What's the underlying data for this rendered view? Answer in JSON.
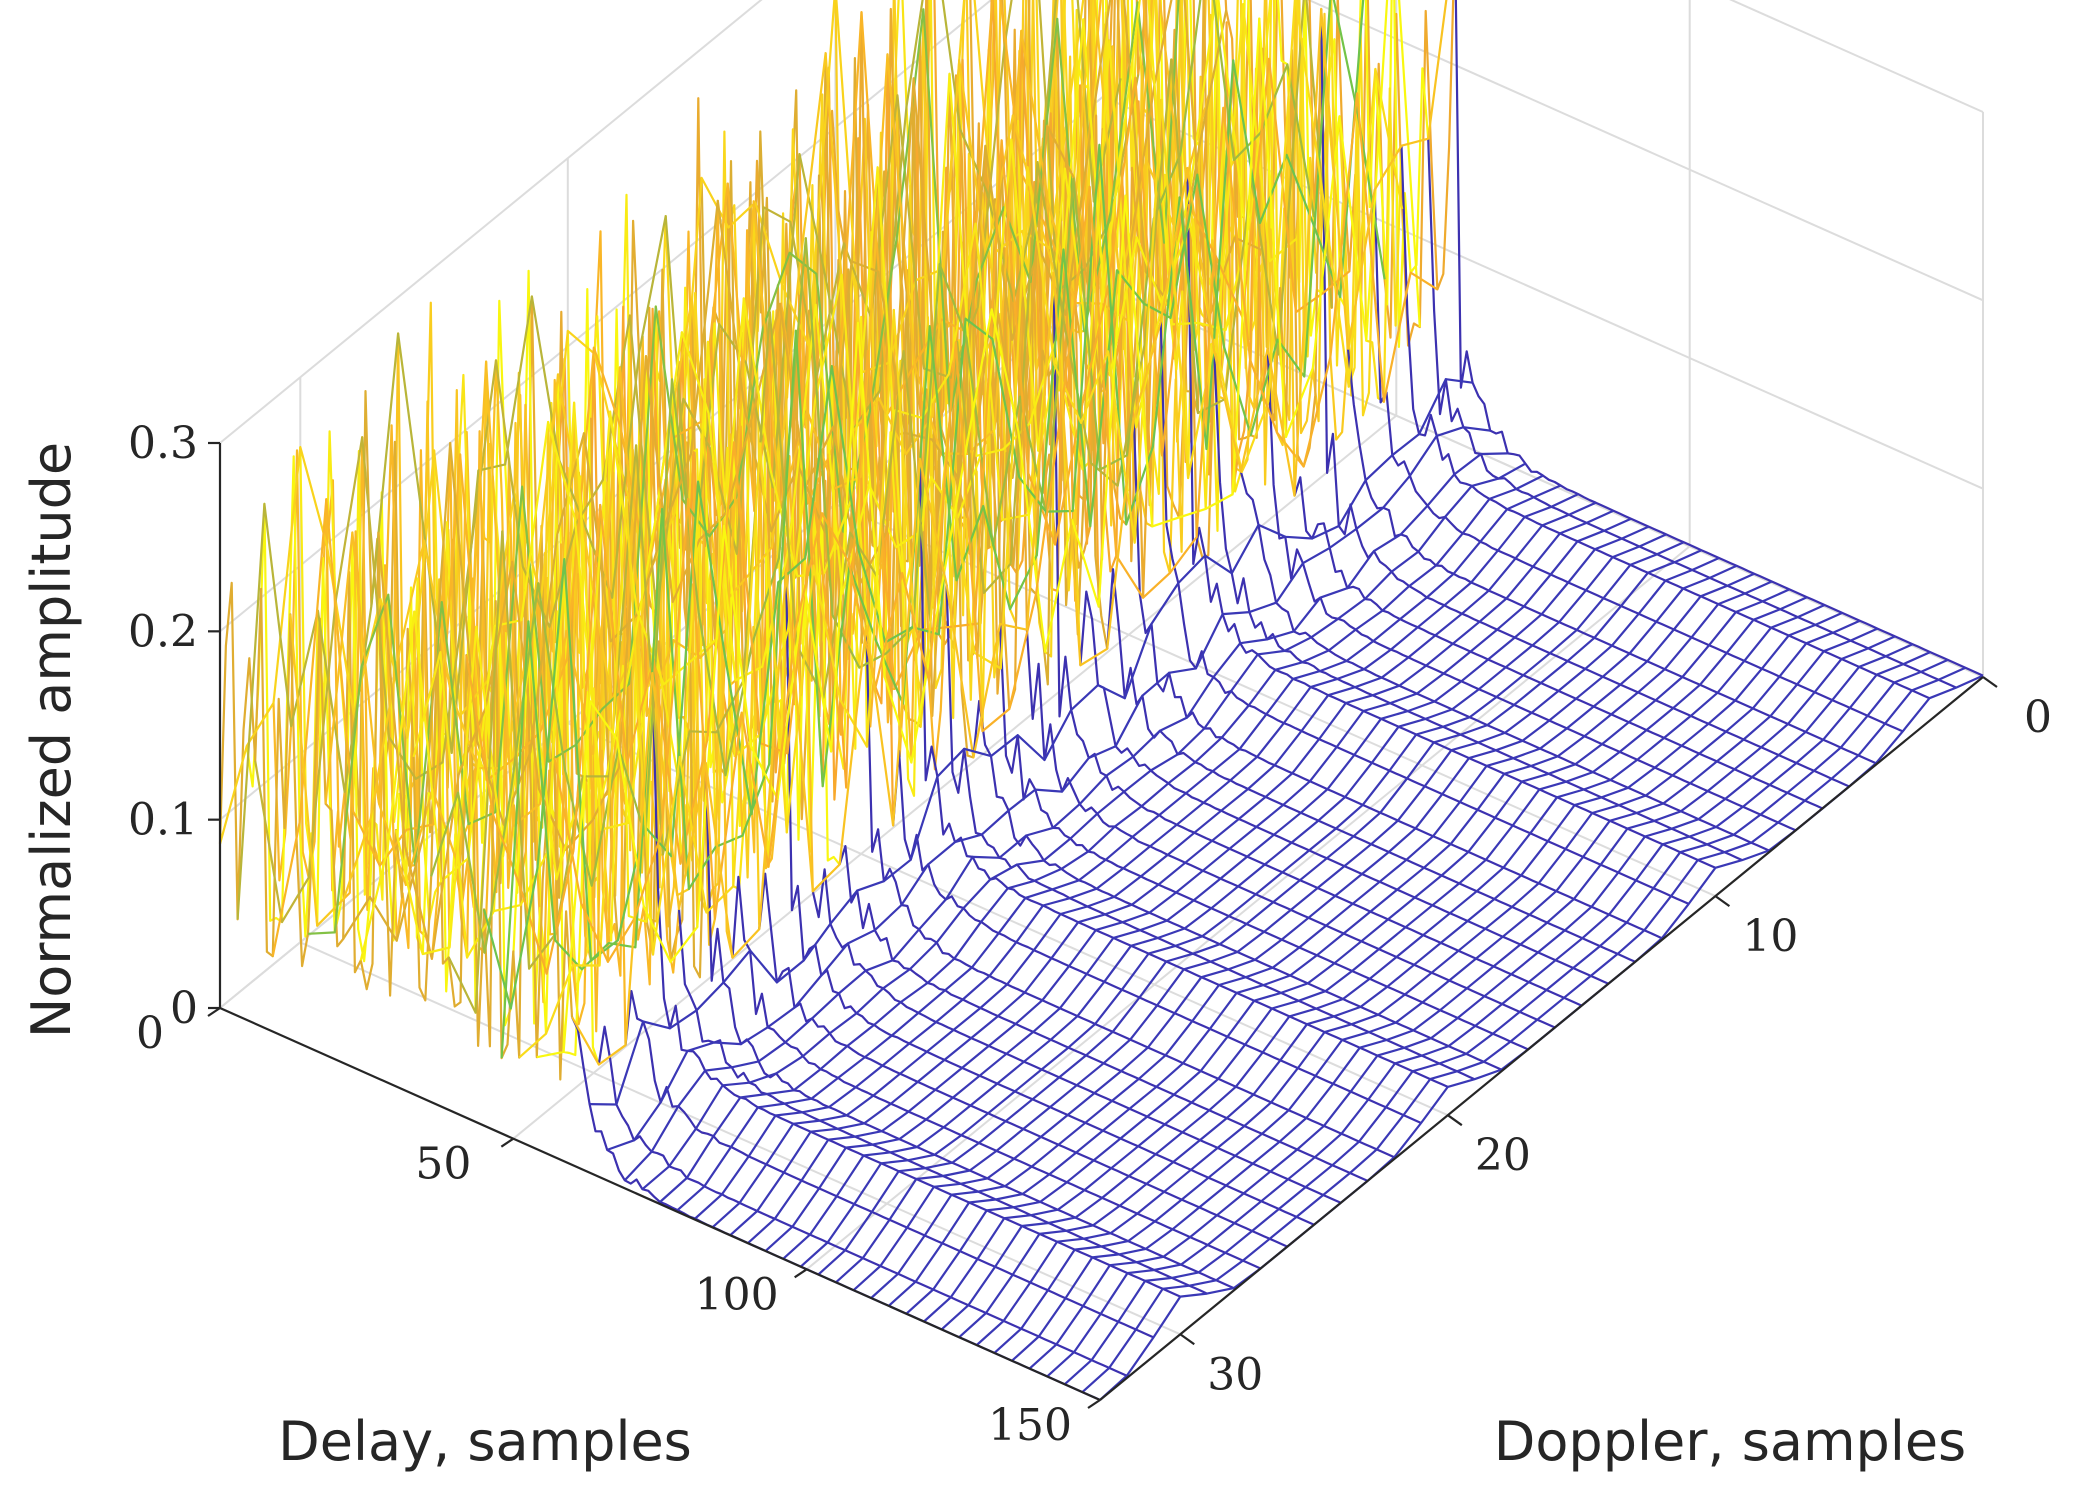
{
  "chart_data": {
    "type": "surface",
    "title": "",
    "xlabel": "Delay, samples",
    "ylabel": "Doppler, samples",
    "zlabel": "Normalized amplitude",
    "xlim": [
      0,
      150
    ],
    "ylim": [
      0,
      33
    ],
    "zlim": [
      0,
      0.3
    ],
    "x_ticks": [
      0,
      50,
      100,
      150
    ],
    "y_ticks": [
      0,
      10,
      20,
      30
    ],
    "z_ticks": [
      0,
      0.1,
      0.2,
      0.3
    ],
    "x_tick_labels": [
      "0",
      "50",
      "100",
      "150"
    ],
    "y_tick_labels": [
      "0",
      "10",
      "20",
      "30"
    ],
    "z_tick_labels": [
      "0",
      "0.1",
      "0.2",
      "0.3"
    ],
    "grid": true,
    "colormap": "parula",
    "colormap_stops": [
      "#3e26a8",
      "#2f6fe0",
      "#16b4c0",
      "#73c448",
      "#f9a82c",
      "#f9fb0e"
    ],
    "data_region_delay_max": 60,
    "noise_peak_amplitude": 0.3,
    "ridges": [
      {
        "doppler": 30,
        "delay_start": 60,
        "delay_end": 150,
        "height": 0.02
      },
      {
        "doppler": 20,
        "delay_start": 60,
        "delay_end": 150,
        "height": 0.015
      },
      {
        "doppler": 10,
        "delay_start": 60,
        "delay_end": 150,
        "height": 0.015
      },
      {
        "doppler": 2,
        "delay_start": 60,
        "delay_end": 150,
        "height": 0.012
      }
    ]
  }
}
